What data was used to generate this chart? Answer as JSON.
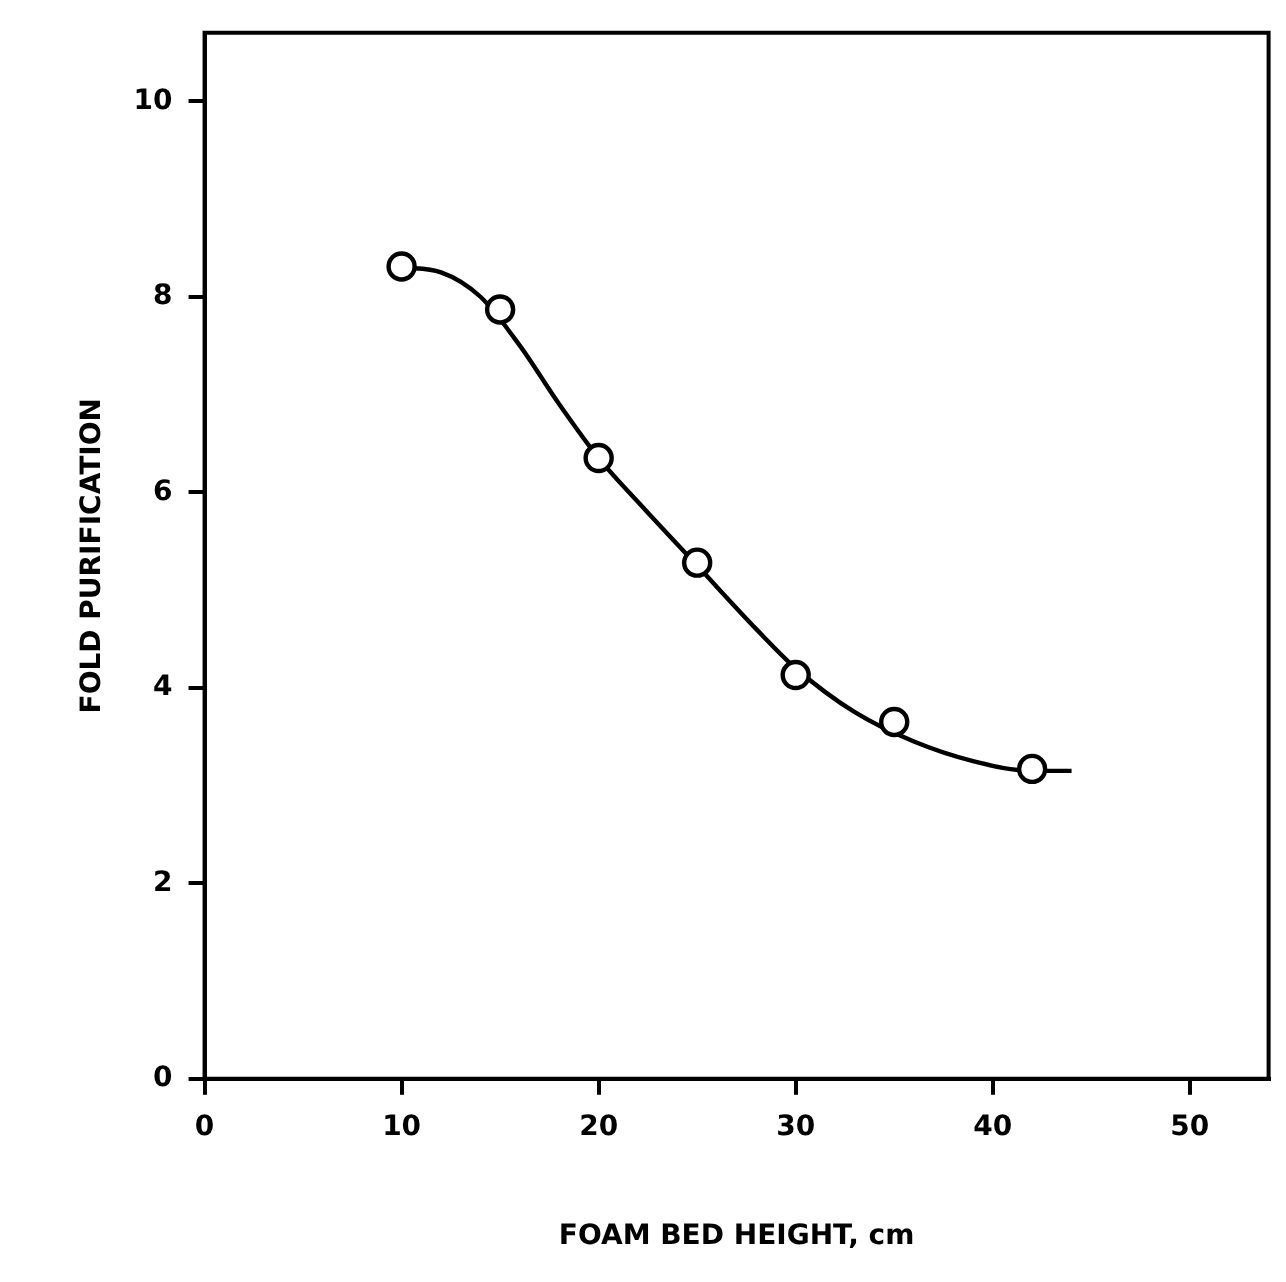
{
  "chart_data": {
    "type": "scatter",
    "xlabel": "FOAM BED HEIGHT, cm",
    "ylabel": "FOLD PURIFICATION",
    "xlim": [
      0,
      54
    ],
    "xticks": [
      0,
      10,
      20,
      30,
      40,
      50
    ],
    "ylim": [
      0,
      10.7
    ],
    "yticks": [
      0,
      2,
      4,
      6,
      8,
      10
    ],
    "grid": false,
    "legend": false,
    "series": [
      {
        "type": "scatter",
        "color": "#000000",
        "marker": "circle",
        "x": [
          10,
          15,
          20,
          25,
          30,
          35,
          42
        ],
        "values": [
          8.31,
          7.87,
          6.35,
          5.28,
          4.13,
          3.65,
          3.17
        ]
      },
      {
        "type": "line",
        "color": "#000000",
        "marker": "none",
        "line_style": "solid",
        "x": [
          10,
          12,
          14,
          16,
          18,
          20,
          22,
          25,
          28,
          30,
          33,
          36,
          39,
          42,
          44
        ],
        "values": [
          8.3,
          8.25,
          8.0,
          7.5,
          6.9,
          6.35,
          5.9,
          5.25,
          4.6,
          4.2,
          3.75,
          3.45,
          3.25,
          3.15,
          3.15
        ]
      }
    ]
  }
}
